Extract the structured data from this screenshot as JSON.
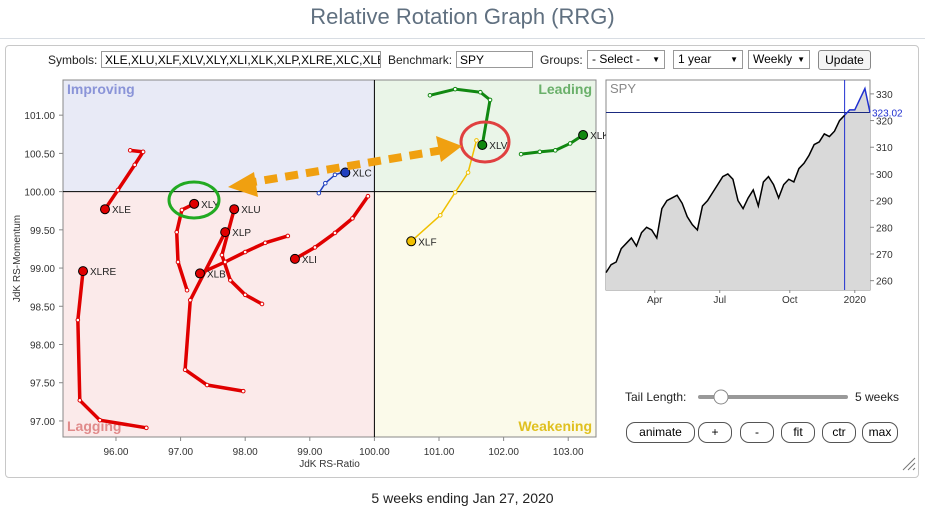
{
  "header": {
    "title": "Relative Rotation Graph (RRG)"
  },
  "controls": {
    "symbols_label": "Symbols:",
    "symbols_value": "XLE,XLU,XLF,XLV,XLY,XLI,XLK,XLP,XLRE,XLC,XLE",
    "benchmark_label": "Benchmark:",
    "benchmark_value": "SPY",
    "groups_label": "Groups:",
    "groups_value": "- Select -",
    "period": "1 year",
    "frequency": "Weekly",
    "update": "Update"
  },
  "chart_data": [
    {
      "type": "scatter",
      "x_label": "JdK RS-Ratio",
      "y_label": "JdK RS-Momentum",
      "xlim": [
        95.18,
        103.43
      ],
      "ylim": [
        96.79,
        101.46
      ],
      "quadrant_center": [
        100,
        100
      ],
      "quadrant_labels": [
        "Improving",
        "Leading",
        "Lagging",
        "Weakening"
      ],
      "quadrant_colors": [
        "#e8eaf6",
        "#eaf5e8",
        "#fbeaea",
        "#fbfaea"
      ],
      "quadrant_text_colors": [
        "#8a94d8",
        "#6ab06a",
        "#e08a8a",
        "#e0c020"
      ],
      "xticks": [
        {
          "value": 96,
          "label": "96.00"
        },
        {
          "value": 97,
          "label": "97.00"
        },
        {
          "value": 98,
          "label": "98.00"
        },
        {
          "value": 99,
          "label": "99.00"
        },
        {
          "value": 100,
          "label": "100.00"
        },
        {
          "value": 101,
          "label": "101.00"
        },
        {
          "value": 102,
          "label": "102.00"
        },
        {
          "value": 103,
          "label": "103.00"
        }
      ],
      "yticks": [
        {
          "value": 97,
          "label": "97.00"
        },
        {
          "value": 97.5,
          "label": "97.50"
        },
        {
          "value": 98,
          "label": "98.00"
        },
        {
          "value": 98.5,
          "label": "98.50"
        },
        {
          "value": 99,
          "label": "99.00"
        },
        {
          "value": 99.5,
          "label": "99.50"
        },
        {
          "value": 100,
          "label": "100.00"
        },
        {
          "value": 100.5,
          "label": "100.50"
        },
        {
          "value": 101,
          "label": "101.00"
        }
      ],
      "series": [
        {
          "name": "XLK",
          "color": "#118811",
          "x": [
            102.27,
            102.56,
            102.8,
            103.03,
            103.23
          ],
          "y": [
            100.49,
            100.52,
            100.54,
            100.63,
            100.74
          ]
        },
        {
          "name": "XLV",
          "color": "#118811",
          "x": [
            100.86,
            101.25,
            101.64,
            101.79,
            101.67
          ],
          "y": [
            101.26,
            101.34,
            101.3,
            101.2,
            100.61
          ]
        },
        {
          "name": "XLF",
          "color": "#f0c000",
          "x": [
            101.58,
            101.45,
            101.25,
            101.02,
            100.57
          ],
          "y": [
            100.67,
            100.25,
            99.99,
            99.69,
            99.35
          ]
        },
        {
          "name": "XLC",
          "color": "#2040c0",
          "x": [
            99.14,
            99.24,
            99.39,
            99.5,
            99.55
          ],
          "y": [
            99.98,
            100.11,
            100.22,
            100.25,
            100.25
          ]
        },
        {
          "name": "XLY",
          "color": "#e00000",
          "x": [
            97.1,
            96.96,
            96.94,
            97.02,
            97.21
          ],
          "y": [
            98.71,
            99.08,
            99.47,
            99.76,
            99.84
          ]
        },
        {
          "name": "XLU",
          "color": "#e00000",
          "x": [
            98.26,
            98.0,
            97.77,
            97.64,
            97.83
          ],
          "y": [
            98.53,
            98.65,
            98.84,
            99.17,
            99.77
          ]
        },
        {
          "name": "XLP",
          "color": "#e00000",
          "x": [
            97.97,
            97.41,
            97.07,
            97.15,
            97.69
          ],
          "y": [
            97.39,
            97.47,
            97.67,
            98.58,
            99.47
          ]
        },
        {
          "name": "XLB",
          "color": "#e00000",
          "x": [
            98.66,
            98.31,
            98.0,
            97.69,
            97.3
          ],
          "y": [
            99.42,
            99.33,
            99.21,
            99.08,
            98.93
          ]
        },
        {
          "name": "XLI",
          "color": "#e00000",
          "x": [
            99.9,
            99.66,
            99.39,
            99.08,
            98.77
          ],
          "y": [
            99.94,
            99.65,
            99.46,
            99.27,
            99.12
          ]
        },
        {
          "name": "XLE",
          "color": "#e00000",
          "x": [
            96.22,
            96.42,
            96.29,
            96.03,
            95.83
          ],
          "y": [
            100.54,
            100.52,
            100.35,
            100.02,
            99.77
          ]
        },
        {
          "name": "XLRE",
          "color": "#e00000",
          "x": [
            96.47,
            95.75,
            95.44,
            95.41,
            95.49
          ],
          "y": [
            96.91,
            97.01,
            97.27,
            98.32,
            98.96
          ]
        }
      ]
    },
    {
      "type": "line",
      "title": "SPY",
      "color": "#000000",
      "tail_color": "#2030d0",
      "fill": "#d9d9d9",
      "xlim": [
        0,
        52
      ],
      "xticks": [
        {
          "value": 9.6,
          "label": "Apr"
        },
        {
          "value": 22.4,
          "label": "Jul"
        },
        {
          "value": 36.2,
          "label": "Oct"
        },
        {
          "value": 49,
          "label": "2020"
        }
      ],
      "ylim": [
        256.5,
        335.2
      ],
      "yticks": [
        260,
        270,
        280,
        290,
        300,
        310,
        320,
        330
      ],
      "values": [
        263,
        266,
        267,
        272,
        274,
        276,
        273,
        278,
        280,
        279,
        276,
        287,
        290,
        291,
        292,
        289,
        284,
        281,
        279,
        288,
        290,
        293,
        296,
        299,
        300,
        298,
        290,
        287,
        291,
        294,
        288,
        297,
        299,
        296,
        291,
        296,
        298,
        297,
        302,
        304,
        307,
        311,
        312,
        315,
        314,
        316,
        320,
        322,
        324,
        324,
        328,
        332,
        323.02
      ]
    }
  ],
  "tail": {
    "label": "Tail Length:",
    "weeks": 5,
    "value_label": "5 weeks"
  },
  "buttons": [
    "animate",
    "+",
    "-",
    "fit",
    "ctr",
    "max"
  ],
  "footer": "5 weeks ending Jan 27, 2020"
}
